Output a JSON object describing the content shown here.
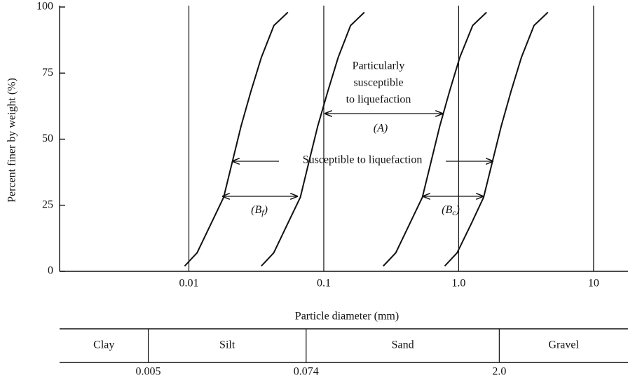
{
  "chart_data": {
    "type": "line",
    "log_x": true,
    "grid_x": true,
    "xlim": [
      0.0011,
      18
    ],
    "ylim": [
      0,
      100
    ],
    "xticks": [
      0.01,
      0.1,
      {
        "value": 1,
        "label": "1.0"
      },
      10
    ],
    "yticks": [
      0,
      25,
      50,
      75,
      100
    ],
    "x_label": "Particle diameter (mm)",
    "y_label": "Percent finer by weight (%)",
    "series": [
      {
        "color": "#111111",
        "x": [
          0.0093,
          0.0115,
          0.0146,
          0.0181,
          0.0209,
          0.0244,
          0.0288,
          0.0345,
          0.0427,
          0.0542
        ],
        "values": [
          2,
          7,
          18,
          28,
          41,
          55,
          68,
          81,
          93,
          98
        ]
      },
      {
        "color": "#111111",
        "x": [
          0.0344,
          0.0426,
          0.054,
          0.067,
          0.0773,
          0.0903,
          0.107,
          0.128,
          0.158,
          0.2
        ],
        "values": [
          2,
          7,
          18,
          28,
          41,
          55,
          68,
          81,
          93,
          98
        ]
      },
      {
        "color": "#111111",
        "x": [
          0.276,
          0.342,
          0.434,
          0.538,
          0.621,
          0.725,
          0.855,
          1.02,
          1.27,
          1.61
        ],
        "values": [
          2,
          7,
          18,
          28,
          41,
          55,
          68,
          81,
          93,
          98
        ]
      },
      {
        "color": "#111111",
        "x": [
          0.788,
          0.974,
          1.24,
          1.53,
          1.77,
          2.07,
          2.44,
          2.92,
          3.62,
          4.59
        ],
        "values": [
          2,
          7,
          18,
          28,
          41,
          55,
          68,
          81,
          93,
          98
        ]
      }
    ],
    "annotations": [
      {
        "lines": [
          "Particularly",
          "susceptible",
          "to liquefaction"
        ]
      },
      {
        "text": "(A)"
      },
      {
        "text": "Susceptible to liquefaction"
      },
      {
        "text": "(B",
        "subscript": "f",
        "suffix": ")"
      },
      {
        "text": "(B",
        "subscript": "c",
        "suffix": ")"
      }
    ],
    "soil_classes": {
      "names": [
        "Clay",
        "Silt",
        "Sand",
        "Gravel"
      ],
      "boundaries": [
        0.005,
        0.074,
        {
          "value": 2,
          "label": "2.0"
        }
      ]
    }
  }
}
